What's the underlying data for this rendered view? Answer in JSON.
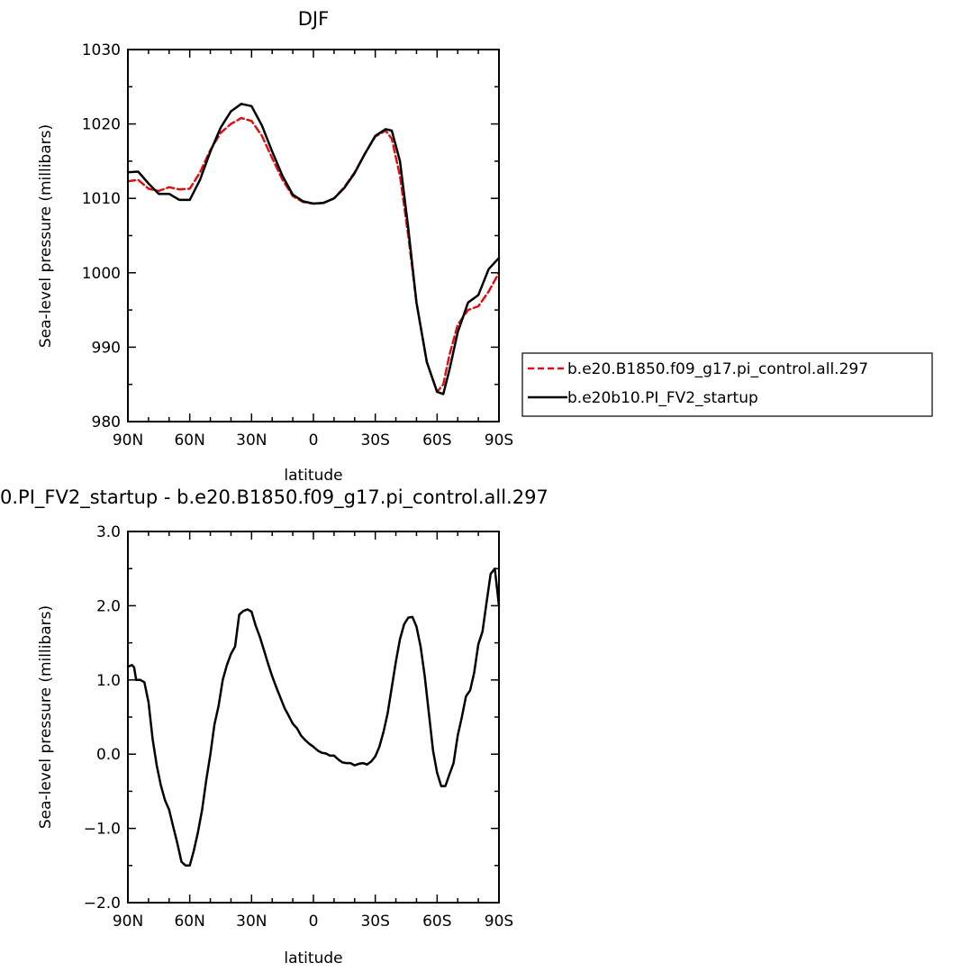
{
  "chart_data": [
    {
      "type": "line",
      "title": "DJF",
      "xlabel": "latitude",
      "ylabel": "Sea-level pressure (millibars)",
      "xlim": [
        90,
        -90
      ],
      "ylim": [
        980,
        1030
      ],
      "xticks": [
        90,
        60,
        30,
        0,
        -30,
        -60,
        -90
      ],
      "xtick_labels": [
        "90N",
        "60N",
        "30N",
        "0",
        "30S",
        "60S",
        "90S"
      ],
      "yticks": [
        980,
        990,
        1000,
        1010,
        1020,
        1030
      ],
      "ytick_labels": [
        "980",
        "990",
        "1000",
        "1010",
        "1020",
        "1030"
      ],
      "grid": false,
      "legend": "right",
      "series": [
        {
          "name": "b.e20.B1850.f09_g17.pi_control.all.297",
          "color": "#e01010",
          "dash": "dashed",
          "x": [
            90,
            85,
            80,
            75,
            70,
            65,
            60,
            55,
            50,
            45,
            40,
            35,
            30,
            25,
            20,
            15,
            10,
            5,
            0,
            -5,
            -10,
            -15,
            -20,
            -25,
            -30,
            -35,
            -38,
            -42,
            -46,
            -50,
            -55,
            -60,
            -63,
            -66,
            -70,
            -75,
            -80,
            -85,
            -90
          ],
          "y": [
            1012.3,
            1012.5,
            1011.3,
            1011,
            1011.5,
            1011.2,
            1011.3,
            1013.5,
            1016.5,
            1018.8,
            1020,
            1020.8,
            1020.4,
            1018.4,
            1015.4,
            1012.5,
            1010.3,
            1009.5,
            1009.3,
            1009.4,
            1010,
            1011.5,
            1013.5,
            1016,
            1018.3,
            1019.1,
            1018,
            1013,
            1005,
            996,
            988,
            984,
            985,
            989,
            993,
            995,
            995.5,
            997.5,
            1000
          ]
        },
        {
          "name": "b.e20b10.PI_FV2_startup",
          "color": "#000000",
          "dash": "solid",
          "x": [
            90,
            85,
            80,
            75,
            70,
            65,
            60,
            55,
            50,
            45,
            40,
            35,
            30,
            25,
            20,
            15,
            10,
            5,
            0,
            -5,
            -10,
            -15,
            -20,
            -25,
            -30,
            -35,
            -38,
            -42,
            -46,
            -50,
            -55,
            -60,
            -63,
            -66,
            -70,
            -75,
            -80,
            -85,
            -90
          ],
          "y": [
            1013.5,
            1013.6,
            1012,
            1010.6,
            1010.6,
            1009.8,
            1009.8,
            1012.5,
            1016.3,
            1019.5,
            1021.7,
            1022.7,
            1022.4,
            1019.8,
            1016.3,
            1013,
            1010.5,
            1009.6,
            1009.3,
            1009.4,
            1010,
            1011.4,
            1013.4,
            1016,
            1018.4,
            1019.3,
            1019.1,
            1015,
            1006,
            996,
            988,
            984,
            983.7,
            987,
            992,
            996,
            997,
            1000.5,
            1002
          ]
        }
      ]
    },
    {
      "type": "line",
      "title": "0.PI_FV2_startup - b.e20.B1850.f09_g17.pi_control.all.297",
      "xlabel": "latitude",
      "ylabel": "Sea-level pressure (millibars)",
      "xlim": [
        90,
        -90
      ],
      "ylim": [
        -2.0,
        3.0
      ],
      "xticks": [
        90,
        60,
        30,
        0,
        -30,
        -60,
        -90
      ],
      "xtick_labels": [
        "90N",
        "60N",
        "30N",
        "0",
        "30S",
        "60S",
        "90S"
      ],
      "yticks": [
        -2.0,
        -1.0,
        0.0,
        1.0,
        2.0,
        3.0
      ],
      "ytick_labels": [
        "−2.0",
        "−1.0",
        "0.0",
        "1.0",
        "2.0",
        "3.0"
      ],
      "grid": false,
      "series": [
        {
          "color": "#000000",
          "dash": "solid",
          "x": [
            90,
            88,
            87,
            86,
            84,
            82,
            80,
            78,
            76,
            74,
            72,
            70,
            68,
            66,
            64,
            62,
            60,
            58,
            56,
            54,
            52,
            50,
            48,
            46,
            44,
            42,
            40,
            38,
            36,
            34,
            32,
            30,
            28,
            26,
            24,
            22,
            20,
            18,
            16,
            14,
            12,
            10,
            8,
            6,
            4,
            2,
            0,
            -2,
            -4,
            -6,
            -8,
            -10,
            -12,
            -14,
            -16,
            -18,
            -20,
            -22,
            -24,
            -26,
            -28,
            -30,
            -32,
            -34,
            -36,
            -38,
            -40,
            -42,
            -44,
            -46,
            -48,
            -50,
            -52,
            -54,
            -56,
            -58,
            -60,
            -62,
            -64,
            -66,
            -68,
            -70,
            -72,
            -74,
            -76,
            -78,
            -80,
            -82,
            -84,
            -86,
            -88,
            -90
          ],
          "y": [
            1.18,
            1.2,
            1.17,
            1.0,
            1.0,
            0.97,
            0.7,
            0.2,
            -0.15,
            -0.42,
            -0.62,
            -0.75,
            -0.98,
            -1.2,
            -1.45,
            -1.5,
            -1.5,
            -1.3,
            -1.05,
            -0.75,
            -0.35,
            0.0,
            0.4,
            0.65,
            1.0,
            1.2,
            1.35,
            1.45,
            1.88,
            1.93,
            1.95,
            1.92,
            1.73,
            1.58,
            1.4,
            1.22,
            1.05,
            0.9,
            0.76,
            0.62,
            0.52,
            0.41,
            0.35,
            0.25,
            0.19,
            0.14,
            0.1,
            0.05,
            0.02,
            0.01,
            -0.02,
            -0.02,
            -0.07,
            -0.11,
            -0.12,
            -0.12,
            -0.15,
            -0.13,
            -0.12,
            -0.14,
            -0.1,
            -0.03,
            0.1,
            0.3,
            0.55,
            0.9,
            1.25,
            1.55,
            1.75,
            1.84,
            1.85,
            1.72,
            1.45,
            1.05,
            0.55,
            0.05,
            -0.25,
            -0.43,
            -0.43,
            -0.27,
            -0.12,
            0.25,
            0.5,
            0.78,
            0.86,
            1.1,
            1.48,
            1.65,
            2.05,
            2.43,
            2.5,
            2.0
          ]
        }
      ]
    }
  ]
}
